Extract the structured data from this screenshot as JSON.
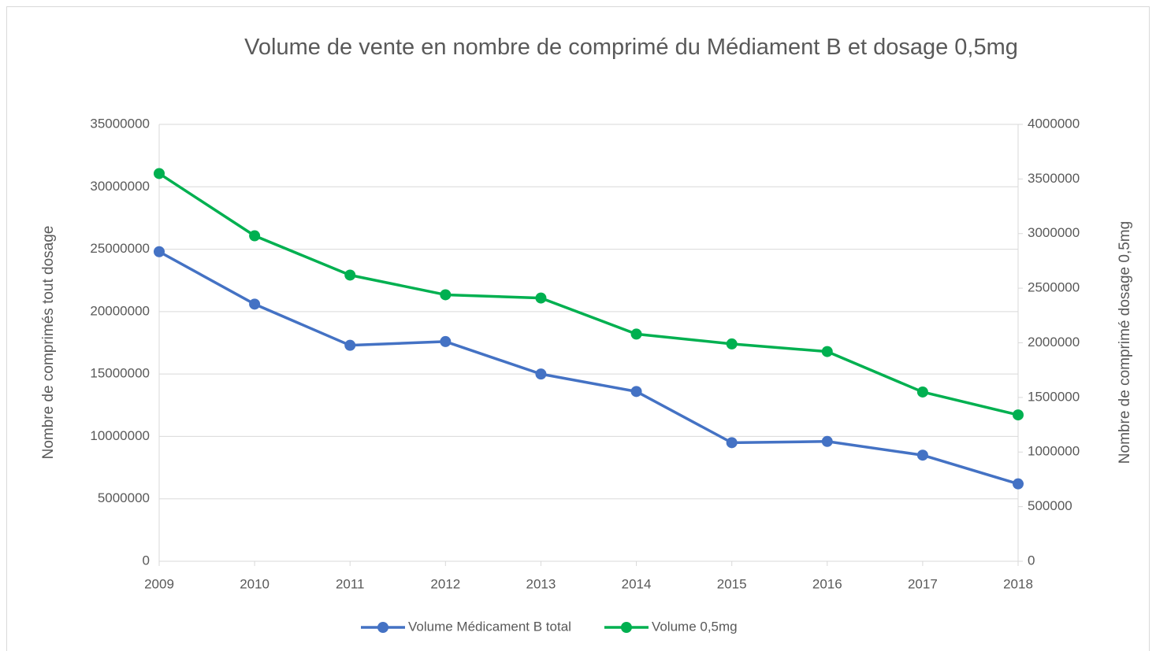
{
  "chart_data": {
    "type": "line",
    "title": "Volume de vente en nombre de comprimé du Médiament B et dosage 0,5mg",
    "ylabel": "Nombre de comprimés tout dosage",
    "y2label": "Nombre de comprimé dosage 0,5mg",
    "x": [
      2009,
      2010,
      2011,
      2012,
      2013,
      2014,
      2015,
      2016,
      2017,
      2018
    ],
    "xlim": [
      2009,
      2018
    ],
    "xticks": [
      2009,
      2010,
      2011,
      2012,
      2013,
      2014,
      2015,
      2016,
      2017,
      2018
    ],
    "ylim": [
      0,
      35000000
    ],
    "yticks": [
      0,
      5000000,
      10000000,
      15000000,
      20000000,
      25000000,
      30000000,
      35000000
    ],
    "y2lim": [
      0,
      4000000
    ],
    "y2ticks": [
      0,
      500000,
      1000000,
      1500000,
      2000000,
      2500000,
      3000000,
      3500000,
      4000000
    ],
    "grid": true,
    "legend": "bottom",
    "series": [
      {
        "name": "Volume Médicament B total",
        "color": "#4472c4",
        "values": [
          24800000,
          20600000,
          17300000,
          17600000,
          15000000,
          13600000,
          9500000,
          9600000,
          8500000,
          6200000
        ]
      },
      {
        "name": "Volume 0,5mg",
        "color": "#00b050",
        "axis": "y2",
        "values": [
          3550000,
          2980000,
          2620000,
          2440000,
          2410000,
          2080000,
          1990000,
          1920000,
          1550000,
          1340000
        ]
      }
    ]
  }
}
